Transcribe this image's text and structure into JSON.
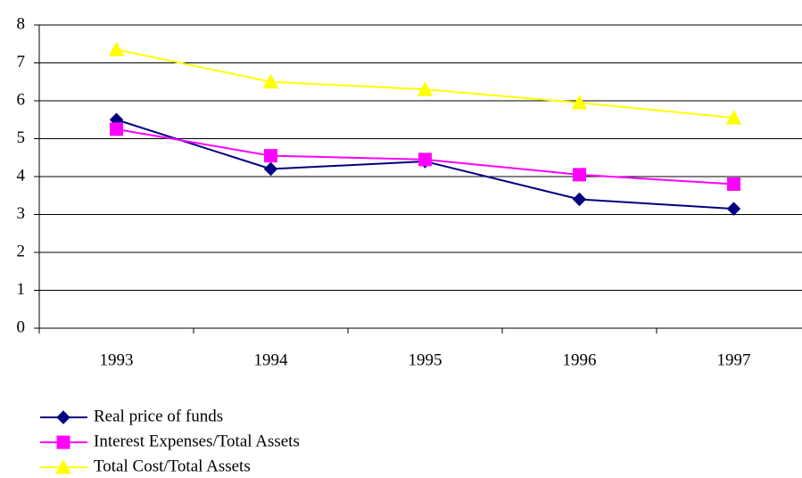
{
  "chart_data": {
    "type": "line",
    "categories": [
      "1993",
      "1994",
      "1995",
      "1996",
      "1997"
    ],
    "series": [
      {
        "name": "Real price of funds",
        "color": "#000080",
        "marker": "diamond",
        "values": [
          5.5,
          4.2,
          4.4,
          3.4,
          3.15
        ]
      },
      {
        "name": "Interest Expenses/Total Assets",
        "color": "#ff00ff",
        "marker": "square",
        "values": [
          5.25,
          4.55,
          4.45,
          4.05,
          3.8
        ]
      },
      {
        "name": "Total Cost/Total Assets",
        "color": "#ffff00",
        "marker": "triangle",
        "values": [
          7.35,
          6.5,
          6.3,
          5.95,
          5.55
        ]
      }
    ],
    "ylim": [
      0,
      8
    ],
    "yticks": [
      0,
      1,
      2,
      3,
      4,
      5,
      6,
      7,
      8
    ],
    "grid": true,
    "legend": "bottom-left"
  }
}
